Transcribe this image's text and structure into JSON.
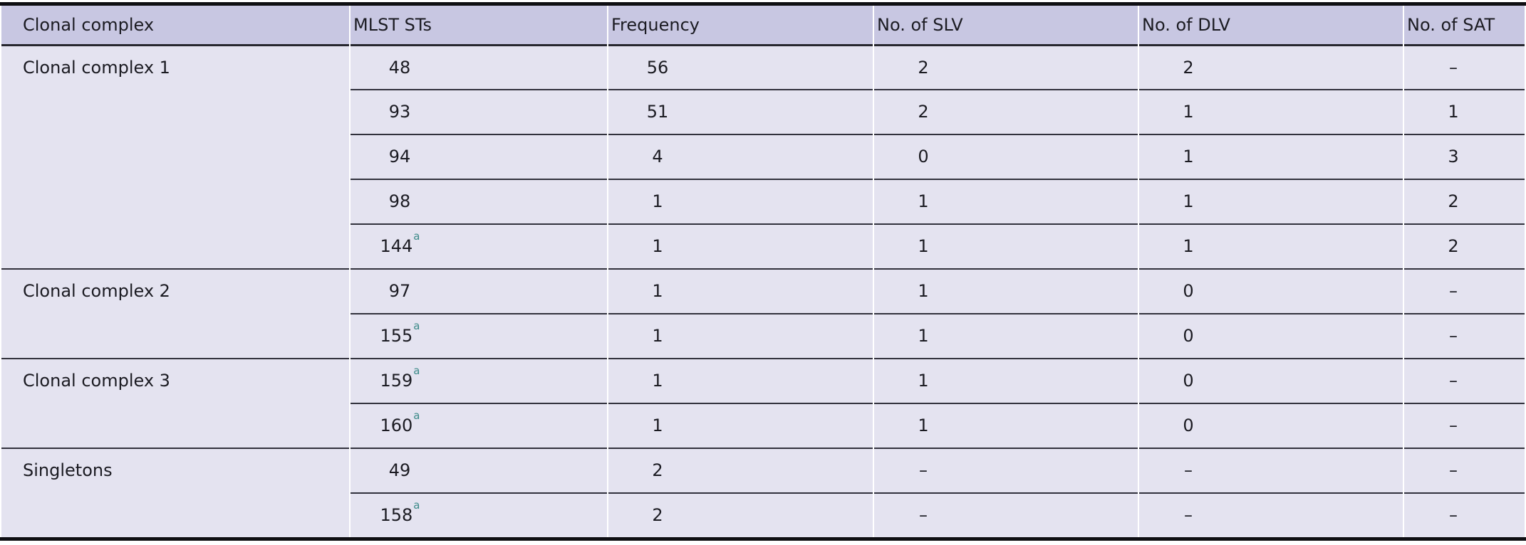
{
  "table": {
    "columns": [
      "Clonal complex",
      "MLST STs",
      "Frequency",
      "No. of SLV",
      "No. of DLV",
      "No. of SAT"
    ],
    "footnote_marker": "a",
    "groups": [
      {
        "complex": "Clonal complex 1",
        "rows": [
          {
            "st": "48",
            "footnote": false,
            "frequency": "56",
            "slv": "2",
            "dlv": "2",
            "sat": "–"
          },
          {
            "st": "93",
            "footnote": false,
            "frequency": "51",
            "slv": "2",
            "dlv": "1",
            "sat": "1"
          },
          {
            "st": "94",
            "footnote": false,
            "frequency": "4",
            "slv": "0",
            "dlv": "1",
            "sat": "3"
          },
          {
            "st": "98",
            "footnote": false,
            "frequency": "1",
            "slv": "1",
            "dlv": "1",
            "sat": "2"
          },
          {
            "st": "144",
            "footnote": true,
            "frequency": "1",
            "slv": "1",
            "dlv": "1",
            "sat": "2"
          }
        ]
      },
      {
        "complex": "Clonal complex 2",
        "rows": [
          {
            "st": "97",
            "footnote": false,
            "frequency": "1",
            "slv": "1",
            "dlv": "0",
            "sat": "–"
          },
          {
            "st": "155",
            "footnote": true,
            "frequency": "1",
            "slv": "1",
            "dlv": "0",
            "sat": "–"
          }
        ]
      },
      {
        "complex": "Clonal complex 3",
        "rows": [
          {
            "st": "159",
            "footnote": true,
            "frequency": "1",
            "slv": "1",
            "dlv": "0",
            "sat": "–"
          },
          {
            "st": "160",
            "footnote": true,
            "frequency": "1",
            "slv": "1",
            "dlv": "0",
            "sat": "–"
          }
        ]
      },
      {
        "complex": "Singletons",
        "rows": [
          {
            "st": "49",
            "footnote": false,
            "frequency": "2",
            "slv": "–",
            "dlv": "–",
            "sat": "–"
          },
          {
            "st": "158",
            "footnote": true,
            "frequency": "2",
            "slv": "–",
            "dlv": "–",
            "sat": "–"
          }
        ]
      }
    ]
  },
  "colors": {
    "header_bg": "#c8c7e2",
    "body_bg": "#e4e3f0",
    "frame": "#0e0e12",
    "rule": "#31313c",
    "rule_heavy": "#26262e",
    "text": "#1b1b22",
    "footnote": "#3c8a88"
  }
}
